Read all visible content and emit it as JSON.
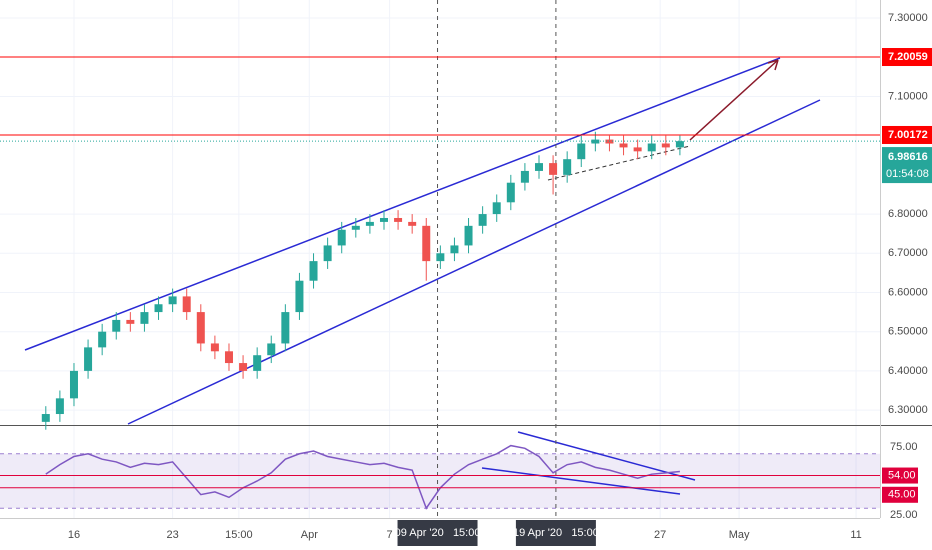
{
  "chart_data": {
    "type": "candlestick",
    "x": [
      -2,
      -1,
      0,
      1,
      2,
      3,
      4,
      5,
      6,
      7,
      8,
      9,
      10,
      11,
      12,
      13,
      14,
      15,
      16,
      17,
      18,
      19,
      20,
      21,
      22,
      23,
      24,
      25,
      26,
      27,
      28,
      29,
      30,
      31,
      32,
      33,
      34,
      35,
      36,
      37,
      38,
      39,
      40,
      41,
      42,
      43
    ],
    "open": [
      6.27,
      6.29,
      6.33,
      6.4,
      6.46,
      6.5,
      6.53,
      6.52,
      6.55,
      6.57,
      6.59,
      6.55,
      6.47,
      6.45,
      6.42,
      6.4,
      6.44,
      6.47,
      6.55,
      6.63,
      6.68,
      6.72,
      6.76,
      6.77,
      6.78,
      6.79,
      6.78,
      6.77,
      6.68,
      6.7,
      6.72,
      6.77,
      6.8,
      6.83,
      6.88,
      6.91,
      6.93,
      6.9,
      6.94,
      6.98,
      6.99,
      6.98,
      6.97,
      6.96,
      6.98,
      6.97
    ],
    "high": [
      6.31,
      6.35,
      6.42,
      6.48,
      6.52,
      6.55,
      6.55,
      6.57,
      6.59,
      6.61,
      6.61,
      6.57,
      6.49,
      6.47,
      6.44,
      6.46,
      6.49,
      6.57,
      6.65,
      6.7,
      6.74,
      6.78,
      6.79,
      6.8,
      6.81,
      6.81,
      6.8,
      6.79,
      6.72,
      6.74,
      6.79,
      6.82,
      6.85,
      6.9,
      6.93,
      6.95,
      6.95,
      6.96,
      7.0,
      7.01,
      7.0,
      7.0,
      6.99,
      7.0,
      7.0,
      7.0
    ],
    "low": [
      6.25,
      6.27,
      6.31,
      6.38,
      6.44,
      6.48,
      6.5,
      6.5,
      6.53,
      6.55,
      6.53,
      6.45,
      6.43,
      6.4,
      6.38,
      6.38,
      6.42,
      6.45,
      6.53,
      6.61,
      6.66,
      6.7,
      6.74,
      6.75,
      6.76,
      6.76,
      6.75,
      6.63,
      6.66,
      6.68,
      6.7,
      6.75,
      6.78,
      6.81,
      6.86,
      6.89,
      6.85,
      6.88,
      6.92,
      6.96,
      6.96,
      6.95,
      6.94,
      6.94,
      6.95,
      6.95
    ],
    "close": [
      6.29,
      6.33,
      6.4,
      6.46,
      6.5,
      6.53,
      6.52,
      6.55,
      6.57,
      6.59,
      6.55,
      6.47,
      6.45,
      6.42,
      6.4,
      6.44,
      6.47,
      6.55,
      6.63,
      6.68,
      6.72,
      6.76,
      6.77,
      6.78,
      6.79,
      6.78,
      6.77,
      6.68,
      6.7,
      6.72,
      6.77,
      6.8,
      6.83,
      6.88,
      6.91,
      6.93,
      6.9,
      6.94,
      6.98,
      6.99,
      6.98,
      6.97,
      6.96,
      6.98,
      6.97,
      6.986
    ],
    "up_color": "#26a69a",
    "down_color": "#ef5350",
    "xlim": [
      -5.25,
      57.2
    ],
    "xticks": [
      {
        "value": 0,
        "label": "16"
      },
      {
        "value": 7,
        "label": "23"
      },
      {
        "value": 11.7,
        "label": "15:00"
      },
      {
        "value": 16.7,
        "label": "Apr"
      },
      {
        "value": 22.4,
        "label": "7"
      },
      {
        "value": 25.8,
        "label": "09 Apr '20   15:00",
        "highlight": true
      },
      {
        "value": 34.2,
        "label": "19 Apr '20   15:00",
        "highlight": true
      },
      {
        "value": 41.6,
        "label": "27"
      },
      {
        "value": 47.2,
        "label": "May"
      },
      {
        "value": 55.5,
        "label": "11"
      }
    ],
    "ylim": [
      6.262,
      7.346
    ],
    "yticks": [
      {
        "value": 6.3,
        "label": "6.30000"
      },
      {
        "value": 6.4,
        "label": "6.40000"
      },
      {
        "value": 6.5,
        "label": "6.50000"
      },
      {
        "value": 6.6,
        "label": "6.60000"
      },
      {
        "value": 6.7,
        "label": "6.70000"
      },
      {
        "value": 6.8,
        "label": "6.80000"
      },
      {
        "value": 7.1,
        "label": "7.10000"
      },
      {
        "value": 7.3,
        "label": "7.30000"
      }
    ],
    "levels": [
      {
        "value": 7.20059,
        "label": "7.20059",
        "color": "#ff0000"
      },
      {
        "value": 7.00172,
        "label": "7.00172",
        "color": "#ff0000"
      }
    ],
    "last_price": {
      "value": 6.98616,
      "label": "6.98616",
      "countdown": "01:54:08",
      "color": "#26a69a"
    },
    "rsi": {
      "values": [
        55,
        62,
        68,
        70,
        66,
        64,
        60,
        63,
        62,
        64,
        52,
        40,
        42,
        38,
        45,
        50,
        56,
        66,
        70,
        72,
        68,
        66,
        64,
        62,
        63,
        60,
        58,
        30,
        45,
        55,
        62,
        66,
        70,
        76,
        74,
        68,
        56,
        62,
        64,
        60,
        58,
        55,
        52,
        55,
        56,
        57
      ],
      "color": "#7e57c2",
      "ylim": [
        22.8,
        90.4
      ],
      "band": [
        30,
        70
      ],
      "yticks": [
        {
          "value": 75,
          "label": "75.00"
        },
        {
          "value": 25,
          "label": "25.00"
        }
      ],
      "levels": [
        {
          "value": 54,
          "label": "54.00",
          "color": "#e0003c"
        },
        {
          "value": 45,
          "label": "45.00",
          "color": "#e0003c"
        }
      ]
    }
  }
}
